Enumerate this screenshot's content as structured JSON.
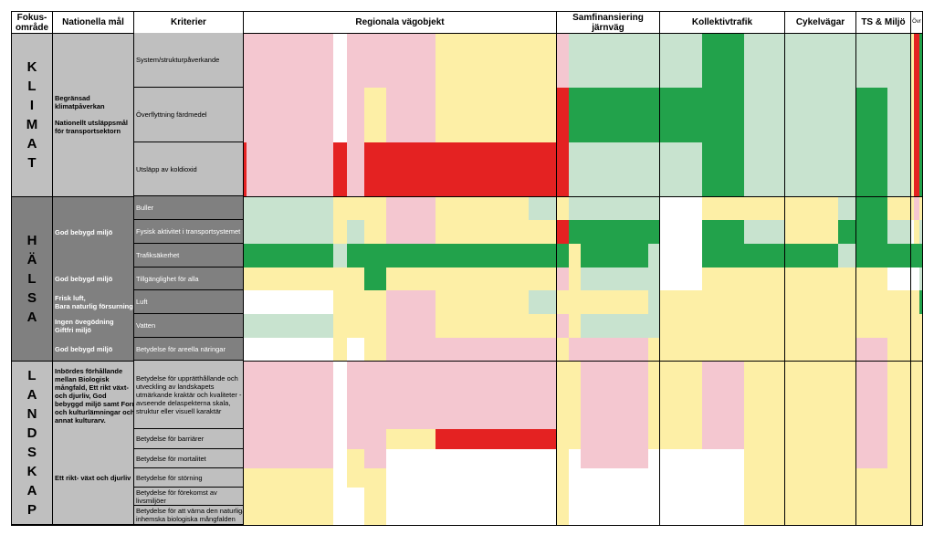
{
  "headers": {
    "focus": "Fokus-\nområde",
    "goals": "Nationella mål",
    "criteria": "Kriterier",
    "groups": [
      "Regionala vägobjekt",
      "Samfinansiering järnväg",
      "Kollektivtrafik",
      "Cykelvägar",
      "TS & Miljö",
      "Övr"
    ]
  },
  "focus_areas": [
    {
      "letters": "K\nL\nI\nM\nA\nT",
      "goals": [
        "Begränsad\nklimatpåverkan\n\nNationellt utsläppsmål\nför transportsektorn"
      ]
    },
    {
      "letters": "H\nÄ\nL\nS\nA",
      "goals": [
        "God bebygd miljö",
        "God bebygd miljö",
        "Frisk luft,\nBara naturlig försurning",
        "Ingen övegödning\nGiftfri miljö",
        "God bebygd miljö"
      ]
    },
    {
      "letters": "L\nA\nN\nD\nS\nK\nA\nP",
      "goals": [
        "Inbördes förhållande\nmellan Biologisk\nmångfald, Ett rikt växt-\noch djurliv, God\nbebyggd miljö samt Forn-\noch kulturlämningar och\nannat kulturarv.",
        "Ett rikt- växt och djurliv"
      ]
    }
  ],
  "criteria": [
    "System/strukturpåverkande",
    "Överflyttning färdmedel",
    "Utsläpp av koldioxid",
    "Buller",
    "Fysisk aktivitet i transportsystemet",
    "Trafiksäkerhet",
    "Tillgänglighet för alla",
    "Luft",
    "Vatten",
    "Betydelse för areella näringar",
    "Betydelse för upprätthållande och\nutveckling av landskapets\nutmärkande kraktär och kvaliteter -\navseende delaspekterna skala,\nstruktur eller visuell karaktär",
    "Betydelse för barriärer",
    "Betydelse för mortalitet",
    "Betydelse för störning",
    "Betydelse för förekomst av\nlivsmiljöer",
    "Betydelse för att värna den naturliga,\ninhemska biologiska mångfalden"
  ],
  "colors": {
    "pink": "#f4c7d0",
    "red": "#e42222",
    "yellow": "#fdefa6",
    "lightgreen": "#c8e3cf",
    "green": "#22a24b",
    "white": "#ffffff",
    "lightgray": "#bfbfbf",
    "darkgray": "#808080"
  }
}
